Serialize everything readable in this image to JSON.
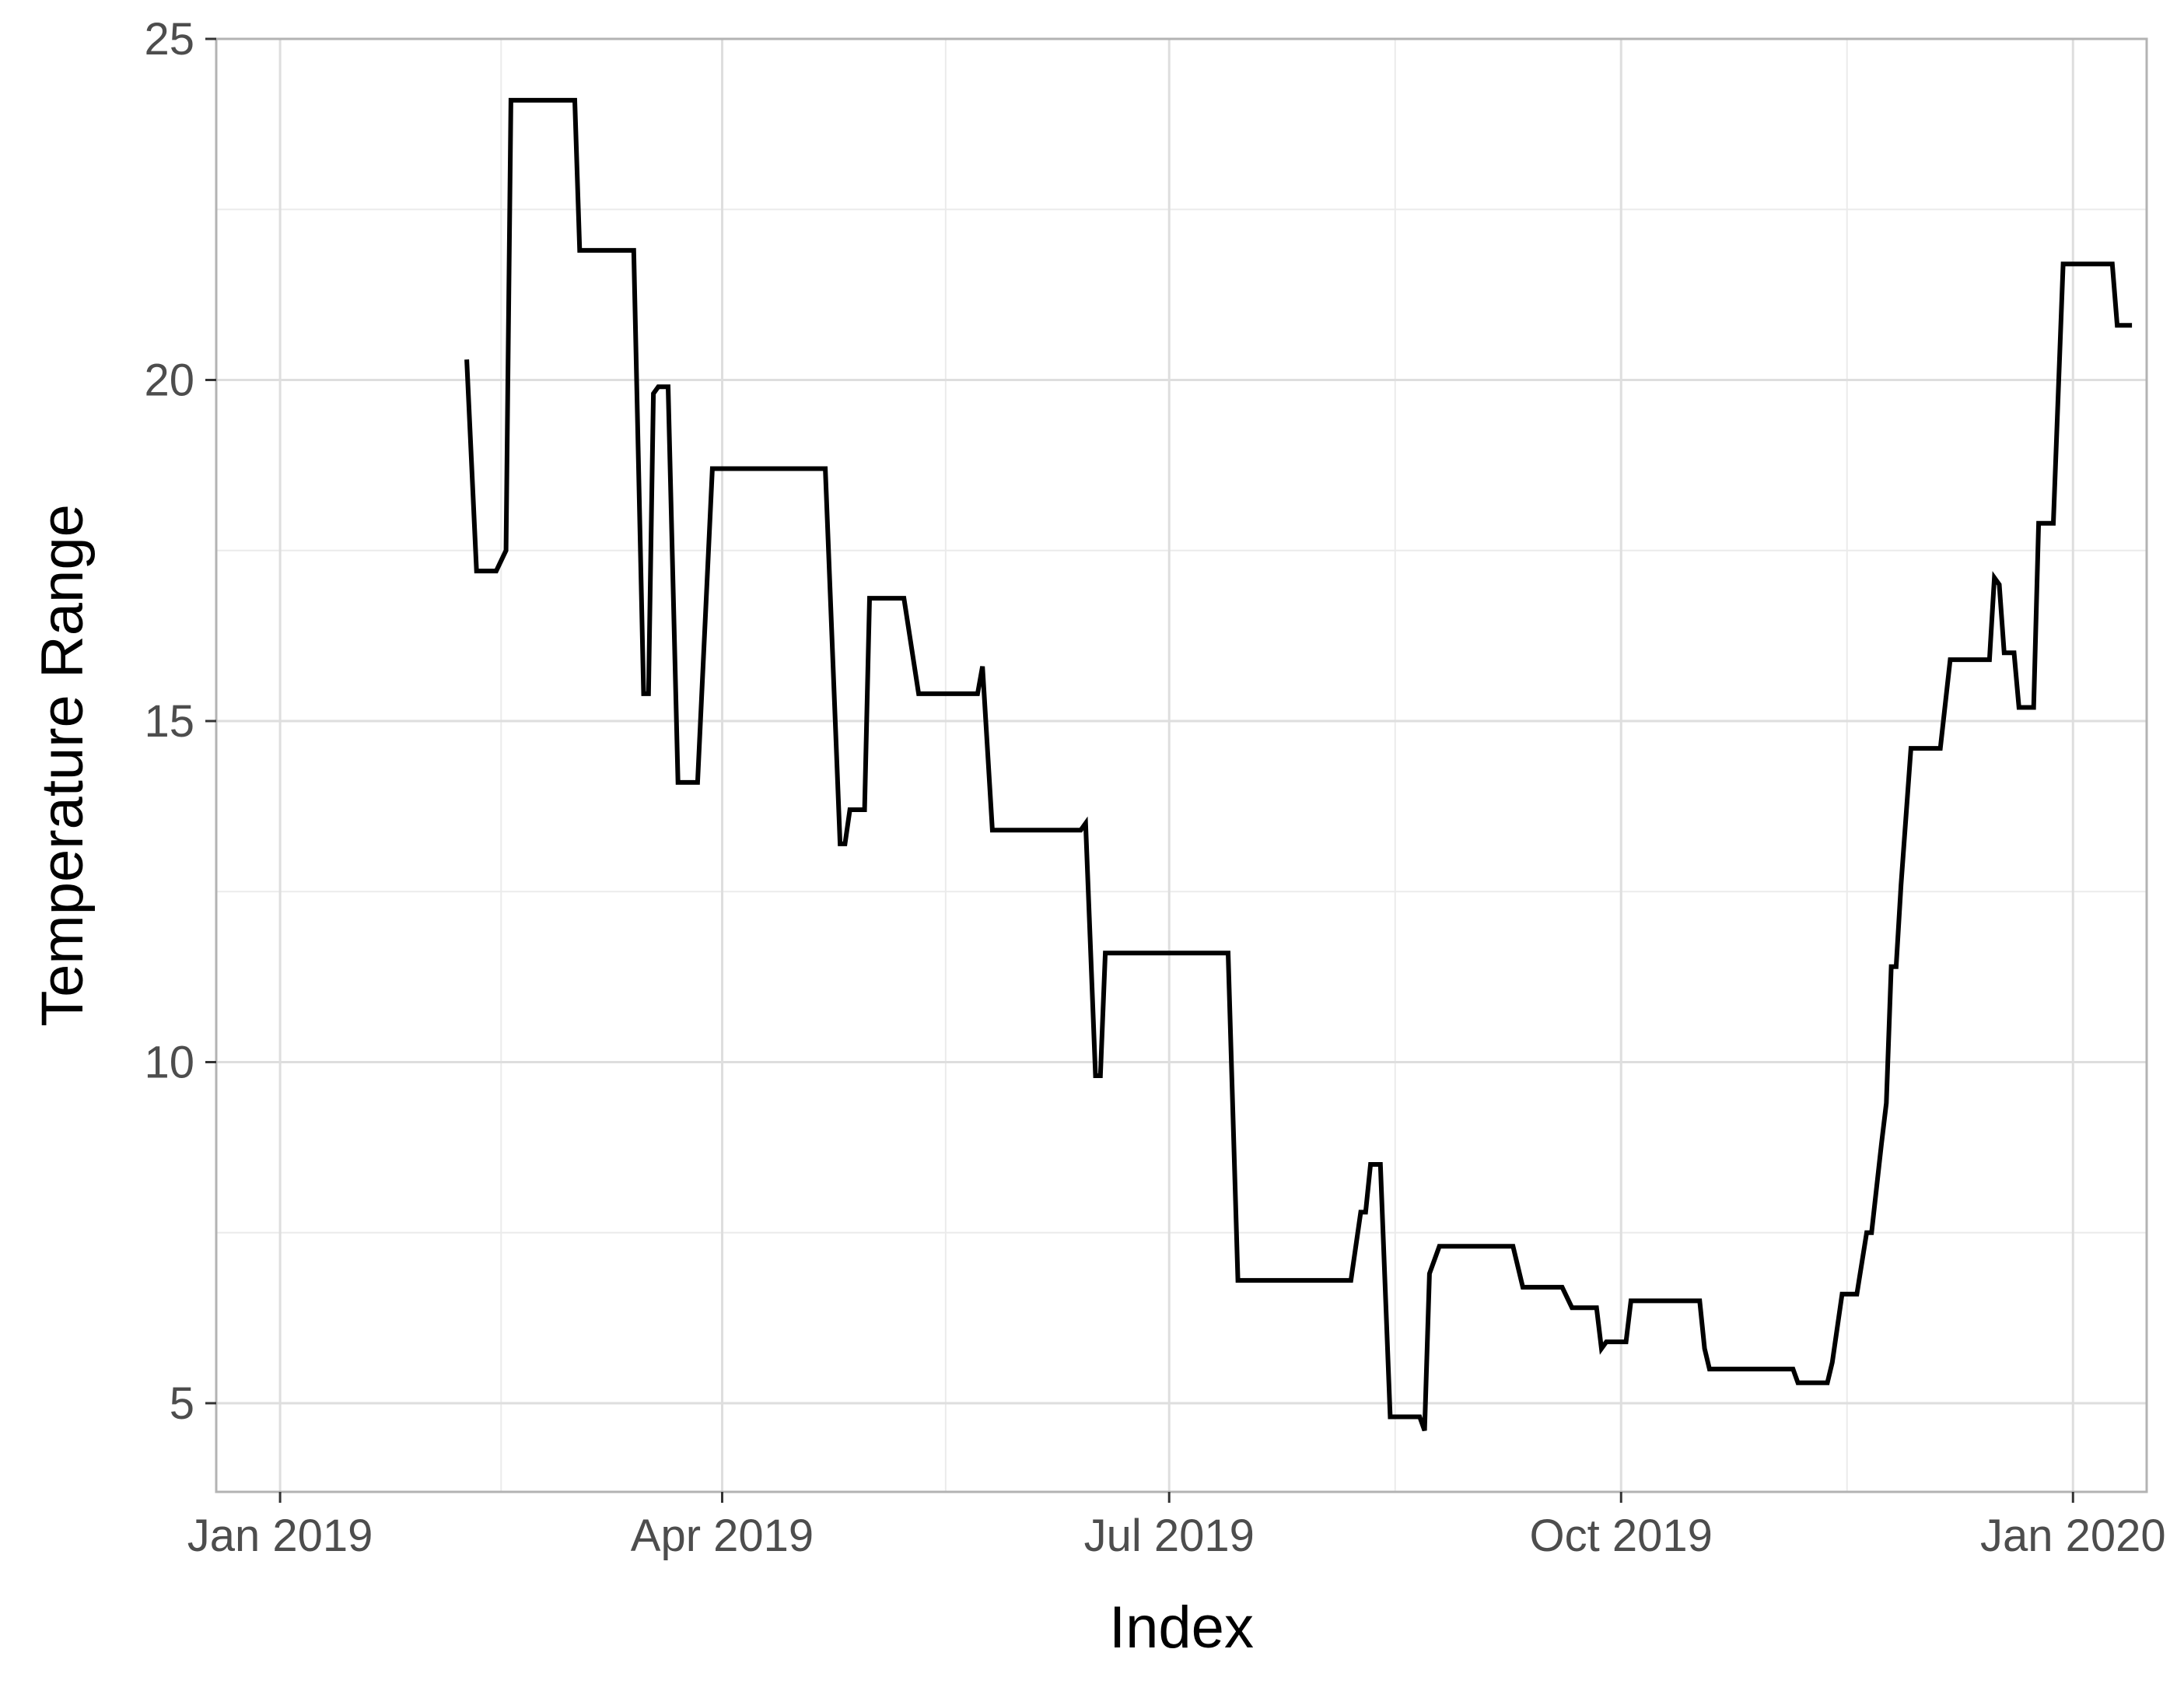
{
  "chart_data": {
    "type": "line",
    "title": "",
    "xlabel": "Index",
    "ylabel": "Temperature Range",
    "x_ticks": [
      "Jan 2019",
      "Apr 2019",
      "Jul 2019",
      "Oct 2019",
      "Jan 2020"
    ],
    "y_ticks": [
      5,
      10,
      15,
      20,
      25
    ],
    "xlim": [
      "2018-12-19",
      "2020-01-16"
    ],
    "ylim": [
      3.7,
      25
    ],
    "grid": true,
    "legend": "none",
    "colors": {
      "line": "#000000",
      "panel_border": "#b3b3b3",
      "grid_major": "#dedede",
      "grid_minor": "#ebebeb"
    },
    "series": [
      {
        "points": [
          [
            "2019-02-08",
            20.3
          ],
          [
            "2019-02-10",
            17.2
          ],
          [
            "2019-02-14",
            17.2
          ],
          [
            "2019-02-16",
            17.5
          ],
          [
            "2019-02-17",
            24.1
          ],
          [
            "2019-03-02",
            24.1
          ],
          [
            "2019-03-03",
            21.9
          ],
          [
            "2019-03-14",
            21.9
          ],
          [
            "2019-03-16",
            15.4
          ],
          [
            "2019-03-17",
            15.4
          ],
          [
            "2019-03-18",
            19.8
          ],
          [
            "2019-03-19",
            19.9
          ],
          [
            "2019-03-21",
            19.9
          ],
          [
            "2019-03-23",
            14.1
          ],
          [
            "2019-03-27",
            14.1
          ],
          [
            "2019-03-30",
            18.7
          ],
          [
            "2019-04-22",
            18.7
          ],
          [
            "2019-04-25",
            13.2
          ],
          [
            "2019-04-26",
            13.2
          ],
          [
            "2019-04-27",
            13.7
          ],
          [
            "2019-04-30",
            13.7
          ],
          [
            "2019-05-01",
            16.8
          ],
          [
            "2019-05-08",
            16.8
          ],
          [
            "2019-05-11",
            15.4
          ],
          [
            "2019-05-23",
            15.4
          ],
          [
            "2019-05-24",
            15.8
          ],
          [
            "2019-05-26",
            13.4
          ],
          [
            "2019-06-13",
            13.4
          ],
          [
            "2019-06-14",
            13.5
          ],
          [
            "2019-06-16",
            9.8
          ],
          [
            "2019-06-17",
            9.8
          ],
          [
            "2019-06-18",
            11.6
          ],
          [
            "2019-07-13",
            11.6
          ],
          [
            "2019-07-15",
            6.8
          ],
          [
            "2019-07-22",
            6.8
          ],
          [
            "2019-07-24",
            6.8
          ],
          [
            "2019-07-28",
            6.8
          ],
          [
            "2019-07-29",
            6.8
          ],
          [
            "2019-08-07",
            6.8
          ],
          [
            "2019-08-09",
            7.8
          ],
          [
            "2019-08-10",
            7.8
          ],
          [
            "2019-08-11",
            8.5
          ],
          [
            "2019-08-13",
            8.5
          ],
          [
            "2019-08-15",
            4.8
          ],
          [
            "2019-08-21",
            4.8
          ],
          [
            "2019-08-22",
            4.6
          ],
          [
            "2019-08-23",
            6.9
          ],
          [
            "2019-08-25",
            7.3
          ],
          [
            "2019-09-09",
            7.3
          ],
          [
            "2019-09-11",
            6.7
          ],
          [
            "2019-09-19",
            6.7
          ],
          [
            "2019-09-21",
            6.4
          ],
          [
            "2019-09-26",
            6.4
          ],
          [
            "2019-09-27",
            5.8
          ],
          [
            "2019-09-28",
            5.9
          ],
          [
            "2019-10-02",
            5.9
          ],
          [
            "2019-10-03",
            6.5
          ],
          [
            "2019-10-17",
            6.5
          ],
          [
            "2019-10-18",
            5.8
          ],
          [
            "2019-10-19",
            5.5
          ],
          [
            "2019-11-05",
            5.5
          ],
          [
            "2019-11-06",
            5.3
          ],
          [
            "2019-11-12",
            5.3
          ],
          [
            "2019-11-13",
            5.6
          ],
          [
            "2019-11-15",
            6.6
          ],
          [
            "2019-11-18",
            6.6
          ],
          [
            "2019-11-20",
            7.5
          ],
          [
            "2019-11-21",
            7.5
          ],
          [
            "2019-11-23",
            8.8
          ],
          [
            "2019-11-24",
            9.4
          ],
          [
            "2019-11-25",
            11.4
          ],
          [
            "2019-11-26",
            11.4
          ],
          [
            "2019-11-27",
            12.6
          ],
          [
            "2019-11-29",
            14.6
          ],
          [
            "2019-12-05",
            14.6
          ],
          [
            "2019-12-07",
            15.9
          ],
          [
            "2019-12-15",
            15.9
          ],
          [
            "2019-12-16",
            17.1
          ],
          [
            "2019-12-17",
            17.0
          ],
          [
            "2019-12-18",
            16.0
          ],
          [
            "2019-12-20",
            16.0
          ],
          [
            "2019-12-21",
            15.2
          ],
          [
            "2019-12-24",
            15.2
          ],
          [
            "2019-12-25",
            17.9
          ],
          [
            "2019-12-28",
            17.9
          ],
          [
            "2019-12-30",
            21.7
          ],
          [
            "2020-01-09",
            21.7
          ],
          [
            "2020-01-10",
            20.8
          ],
          [
            "2020-01-13",
            20.8
          ]
        ]
      }
    ]
  }
}
